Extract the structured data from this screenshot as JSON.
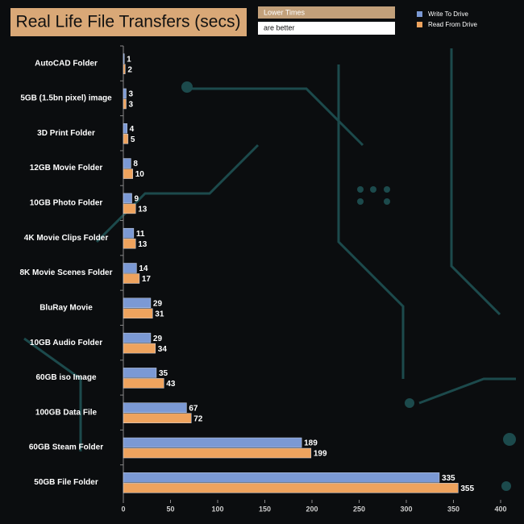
{
  "chart_data": {
    "type": "hbar",
    "title": "Real Life File Transfers (secs)",
    "annotations": [
      "Lower Times",
      "are better"
    ],
    "categories": [
      "AutoCAD Folder",
      "5GB (1.5bn pixel) image",
      "3D Print Folder",
      "12GB Movie Folder",
      "10GB Photo Folder",
      "4K Movie Clips Folder",
      "8K Movie Scenes Folder",
      "BluRay Movie",
      "10GB Audio Folder",
      "60GB iso Image",
      "100GB Data File",
      "60GB Steam Folder",
      "50GB File Folder"
    ],
    "series": [
      {
        "name": "Write To  Drive",
        "color": "#7b99d4",
        "values": [
          1,
          3,
          4,
          8,
          9,
          11,
          14,
          29,
          29,
          35,
          67,
          189,
          335
        ]
      },
      {
        "name": "Read From  Drive",
        "color": "#eea35e",
        "values": [
          2,
          3,
          5,
          10,
          13,
          13,
          17,
          31,
          34,
          43,
          72,
          199,
          355
        ]
      }
    ],
    "xlim": [
      0,
      400
    ],
    "xticks": [
      0,
      50,
      100,
      150,
      200,
      250,
      300,
      350,
      400
    ],
    "grid": false,
    "legend": "top-right"
  }
}
